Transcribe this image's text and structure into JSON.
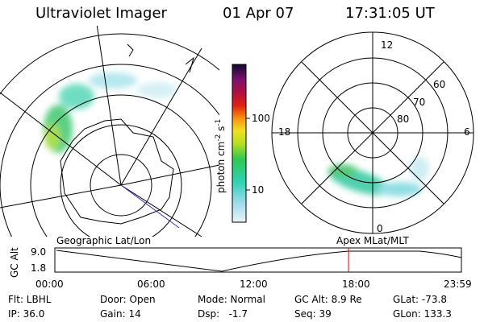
{
  "header": {
    "title": "Ultraviolet Imager",
    "date": "01 Apr 07",
    "time": "17:31:05 UT"
  },
  "colorbar": {
    "ticks": [
      "100",
      "10"
    ],
    "unit": [
      "photon cm",
      "-2",
      "s",
      "-1"
    ]
  },
  "polar_plot": {
    "mlt_labels": [
      "12",
      "18",
      "6",
      "0"
    ],
    "lat_labels": [
      "60",
      "70",
      "80"
    ]
  },
  "altitude_plot": {
    "y_label": "GC Alt",
    "left_title": "Geographic Lat/Lon",
    "right_title": "Apex MLat/MLT",
    "yticks": [
      "9.0",
      "1.8"
    ],
    "xticks": [
      "00:00",
      "06:00",
      "12:00",
      "18:00",
      "23:59"
    ]
  },
  "info": {
    "rows": [
      [
        "Flt: LBHL",
        "Door: Open",
        "Mode: Normal",
        "GC Alt: 8.9 Re",
        "GLat: -73.8"
      ],
      [
        "IP: 36.0",
        "Gain: 14",
        "Dsp:   -1.7",
        "Seq: 39",
        "GLon: 133.3"
      ]
    ]
  }
}
